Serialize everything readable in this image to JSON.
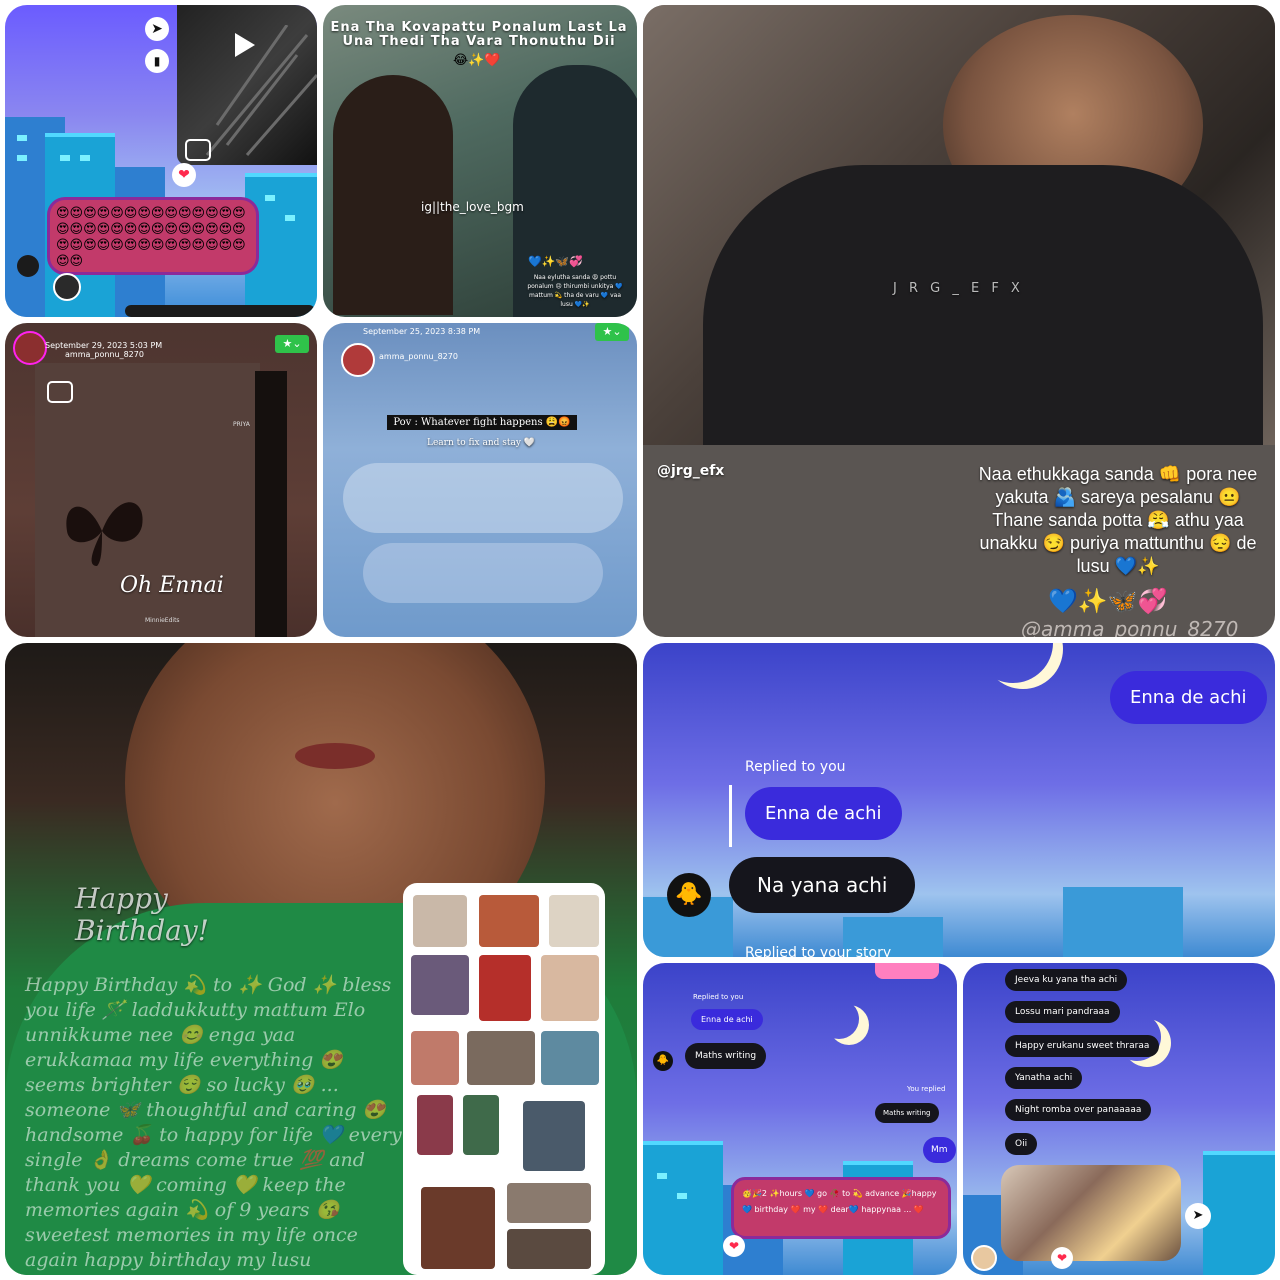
{
  "tiles": {
    "t1": {
      "emoji_block": "😍😍😍😍😍😍😍😍😍😍😍😍😍😍😍😍😍😍😍😍😍😍😍😍😍😍😍😍😍😍😍😍😍😍😍😍😍😍😍😍😍😍😍😍",
      "heart": "❤"
    },
    "t2": {
      "title": "Ena Tha Kovapattu Ponalum Last La Una Thedi Tha Vara Thonuthu Dii",
      "title_emoji": "😂✨❤️",
      "watermark": "ig||the_love_bgm",
      "caption_emoji": "💙✨🦋💞",
      "caption": "Naa eylutha sanda 😩 pottu ponalum 😣 thirumbi unkitya 💙 mattum 💫 tha de varu 💙 vaa lusu 💙✨"
    },
    "t3": {
      "watermark": "J R G _ E F X",
      "handle": "@jrg_efx",
      "lines": [
        "Naa ethukkaga sanda 👊 pora nee",
        "yakuta 🫂 sareya pesalanu 😐",
        "Thane sanda potta 😤 athu yaa",
        "unakku 😏 puriya mattunthu 😔 de",
        "lusu 💙✨"
      ],
      "emoji_row": "💙✨🦋💞",
      "credit": "@amma_ponnu_8270"
    },
    "t4": {
      "date": "September 29, 2023 5:03 PM",
      "user": "amma_ponnu_8270",
      "small_text": "PRIYA",
      "script": "Oh Ennai",
      "footer": "MinnieEdits"
    },
    "t5": {
      "date": "September 25, 2023 8:38 PM",
      "user": "amma_ponnu_8270",
      "quote": "Pov : Whatever fight happens 😩😡",
      "sub": "Learn to fix and stay 🤍"
    },
    "t6": {
      "script": "Happy Birthday!",
      "text": "Happy Birthday 💫 to ✨ God ✨ bless you life 🪄 laddukkutty mattum Elo unnikkume nee 😊 enga yaa erukkamaa my life everything 😍 seems brighter 😌 so lucky 🥹 ... someone 🦋 thoughtful and caring 😍 handsome 🍒 to happy for life 💙 every single 👌 dreams come true 💯 and thank you 💛 coming 💛 keep the memories again 💫 of 9 years 😘 sweetest memories in my life once again happy birthday my lusu"
    },
    "t7": {
      "bubble_top": "Enna de achi",
      "replied_label": "Replied to you",
      "quoted": "Enna de achi",
      "reply": "Na yana achi",
      "bottom_cut": "Replied to your story"
    },
    "t8": {
      "replied_label": "Replied to you",
      "quoted": "Enna de achi",
      "msg": "Maths writing",
      "you_replied": "You replied",
      "you_quoted": "Maths writing",
      "mm": "Mm",
      "bday": "🥳🎉2 ✨hours 💙 go 🥀 to 💫 advance 🎉happy 💙 birthday ❤️ my ❤️ dear💙 happynaa ... ❤️"
    },
    "t9": {
      "messages": [
        "Jeeva ku yana tha achi",
        "Lossu mari pandraaa",
        "Happy erukanu sweet thraraa",
        "Yanatha achi",
        "Night romba over panaaaaa",
        "Oii"
      ]
    }
  },
  "colors": {
    "accent_purple": "#3a2bdc",
    "bubble_dark": "#15151c",
    "emoji_card": "#c23a6a"
  }
}
